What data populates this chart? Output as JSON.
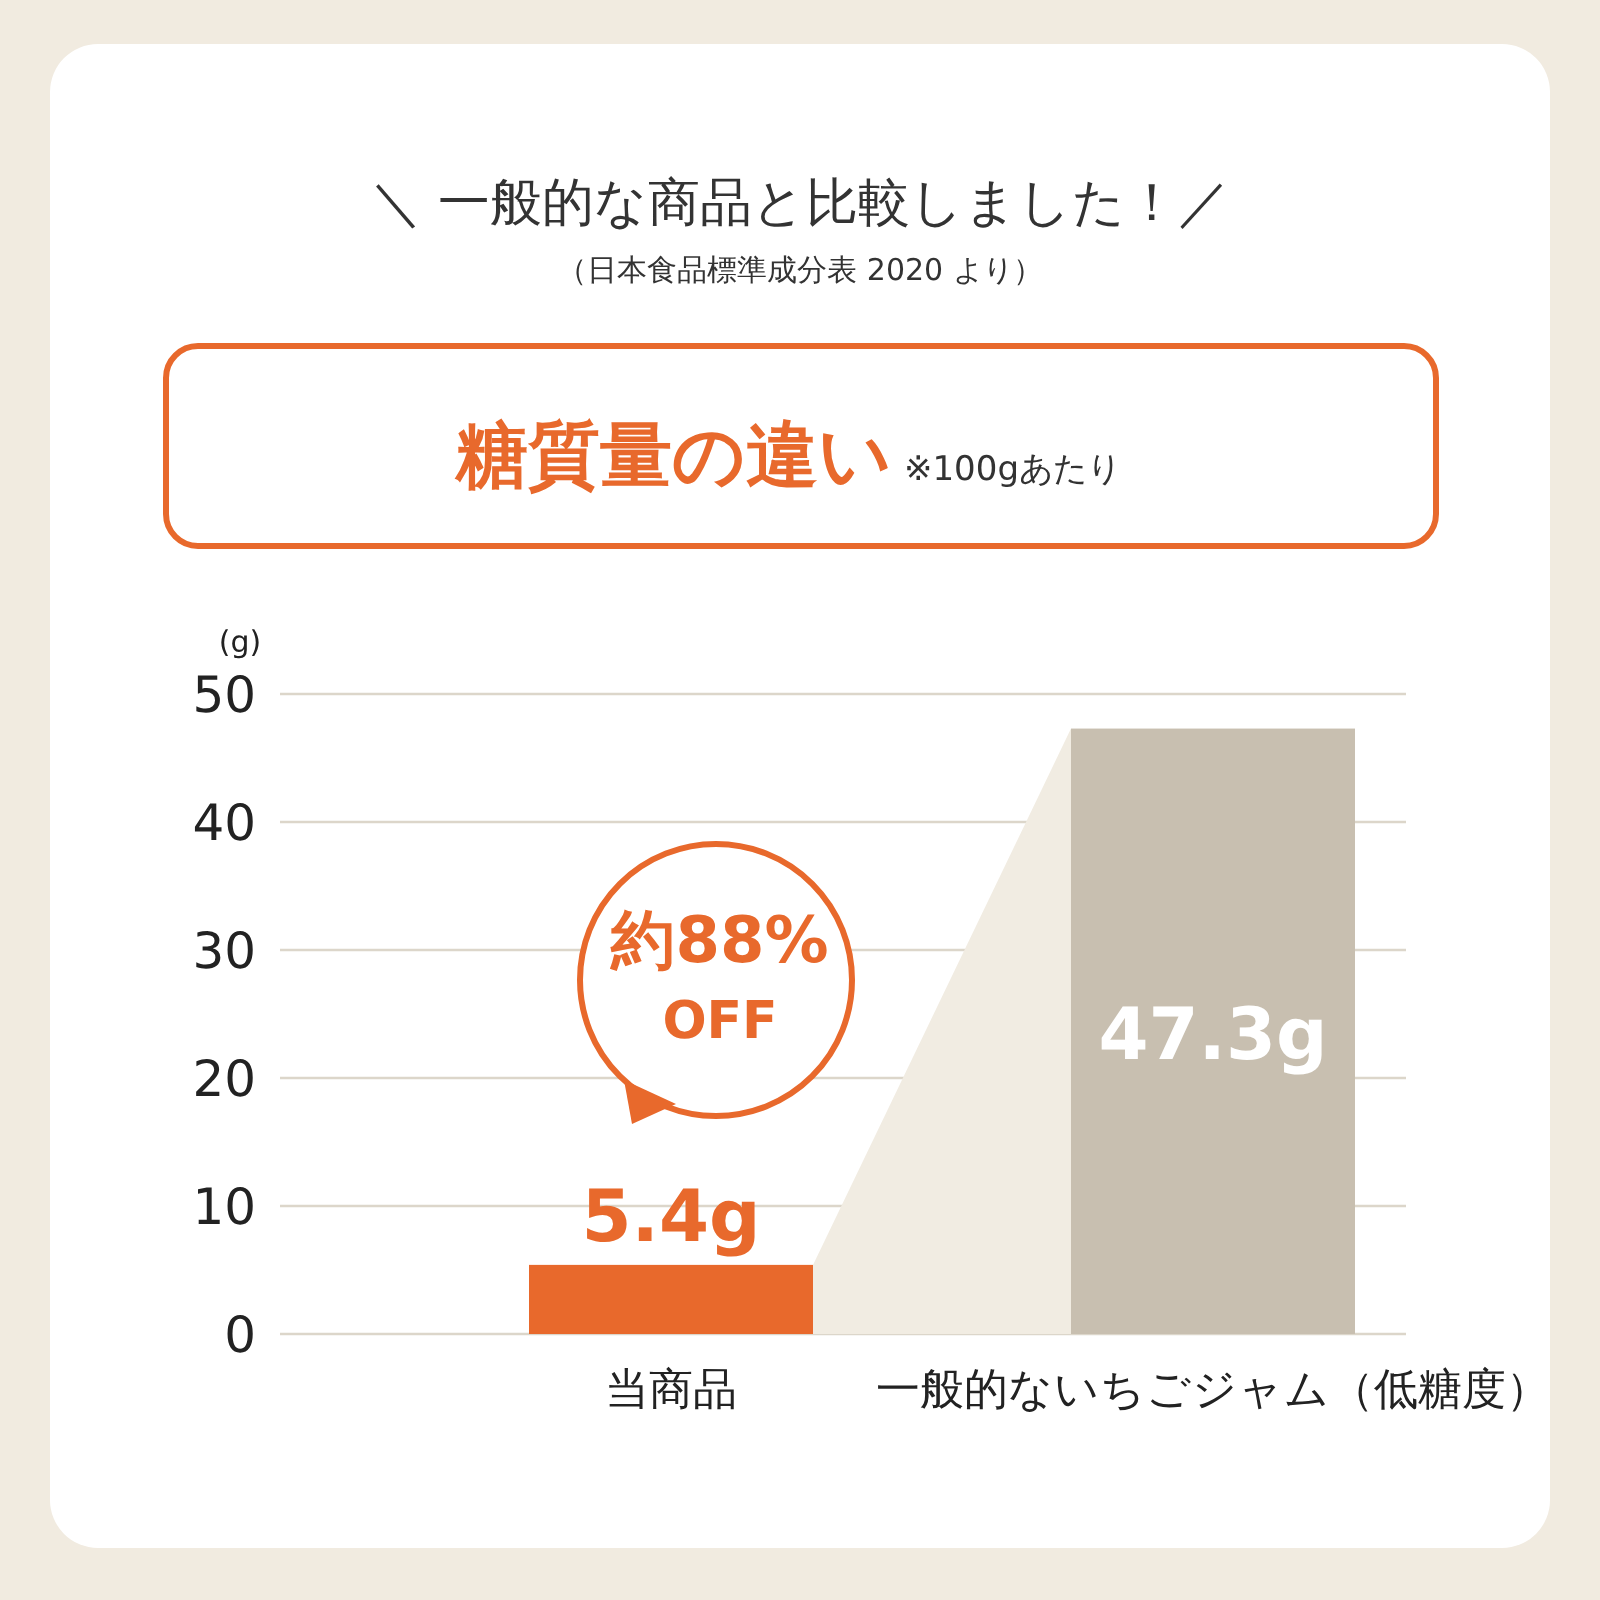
{
  "chart_data": {
    "type": "bar",
    "title": "＼ 一般的な商品と比較しました！／",
    "subtitle": "（日本食品標準成分表 2020 より）",
    "ylabel": "(g)",
    "categories": [
      "当商品",
      "一般的ないちごジャム（低糖度）"
    ],
    "values": [
      5.4,
      47.3
    ],
    "colors": [
      "#e8692c",
      "#c8bfb0"
    ],
    "value_labels": [
      "5.4g",
      "47.3g"
    ],
    "ylim": [
      0,
      50
    ],
    "yticks": [
      0,
      10,
      20,
      30,
      40,
      50
    ],
    "grid": "y",
    "annotations": [
      "糖質量の違い",
      "※100gあたり",
      "約88% OFF"
    ]
  }
}
